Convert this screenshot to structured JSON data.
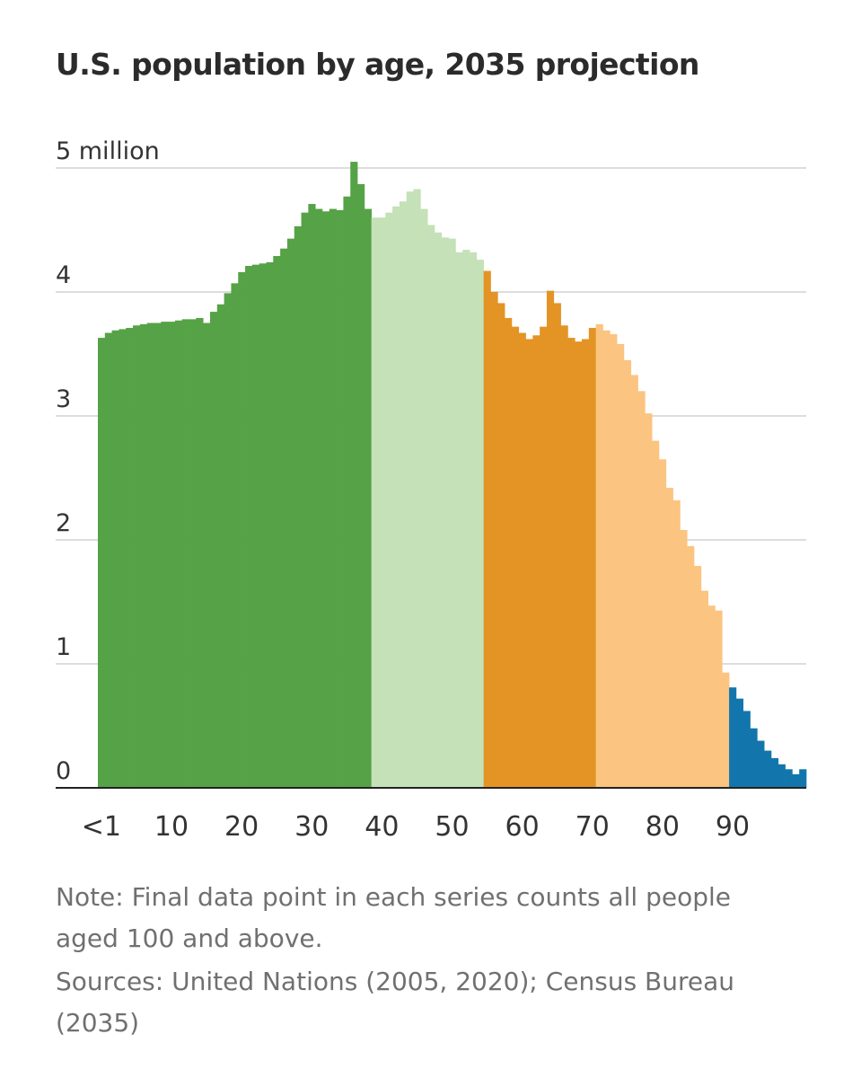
{
  "chart_data": {
    "type": "bar",
    "title": "U.S. population by age, 2035 projection",
    "y_unit_label": "million",
    "ylim": [
      0,
      5
    ],
    "y_ticks": [
      {
        "value": 0,
        "label": "0"
      },
      {
        "value": 1,
        "label": "1"
      },
      {
        "value": 2,
        "label": "2"
      },
      {
        "value": 3,
        "label": "3"
      },
      {
        "value": 4,
        "label": "4"
      },
      {
        "value": 5,
        "label": "5 million"
      }
    ],
    "x_ticks": [
      {
        "value": 0,
        "label": "<1"
      },
      {
        "value": 10,
        "label": "10"
      },
      {
        "value": 20,
        "label": "20"
      },
      {
        "value": 30,
        "label": "30"
      },
      {
        "value": 40,
        "label": "40"
      },
      {
        "value": 50,
        "label": "50"
      },
      {
        "value": 60,
        "label": "60"
      },
      {
        "value": 70,
        "label": "70"
      },
      {
        "value": 80,
        "label": "80"
      },
      {
        "value": 90,
        "label": "90"
      }
    ],
    "grid": true,
    "legend": "none",
    "x_start_age": 0,
    "groups": [
      {
        "from_age": 0,
        "to_age": 38,
        "color": "#56a247"
      },
      {
        "from_age": 39,
        "to_age": 54,
        "color": "#c5e1b7"
      },
      {
        "from_age": 55,
        "to_age": 70,
        "color": "#e39424"
      },
      {
        "from_age": 71,
        "to_age": 89,
        "color": "#fbc480"
      },
      {
        "from_age": 90,
        "to_age": 100,
        "color": "#1276ad"
      }
    ],
    "values": [
      3.63,
      3.67,
      3.69,
      3.7,
      3.71,
      3.73,
      3.74,
      3.75,
      3.75,
      3.76,
      3.76,
      3.77,
      3.78,
      3.78,
      3.79,
      3.75,
      3.84,
      3.9,
      3.99,
      4.07,
      4.16,
      4.21,
      4.22,
      4.23,
      4.24,
      4.29,
      4.35,
      4.43,
      4.53,
      4.64,
      4.71,
      4.67,
      4.65,
      4.67,
      4.66,
      4.77,
      5.05,
      4.87,
      4.67,
      4.6,
      4.6,
      4.64,
      4.69,
      4.73,
      4.81,
      4.83,
      4.67,
      4.54,
      4.48,
      4.44,
      4.43,
      4.32,
      4.34,
      4.32,
      4.26,
      4.17,
      4.0,
      3.91,
      3.79,
      3.72,
      3.67,
      3.62,
      3.65,
      3.72,
      4.01,
      3.91,
      3.73,
      3.63,
      3.6,
      3.62,
      3.71,
      3.74,
      3.69,
      3.66,
      3.58,
      3.45,
      3.33,
      3.2,
      3.02,
      2.8,
      2.65,
      2.42,
      2.32,
      2.08,
      1.95,
      1.79,
      1.59,
      1.47,
      1.43,
      0.93,
      0.81,
      0.72,
      0.62,
      0.48,
      0.38,
      0.3,
      0.24,
      0.19,
      0.15,
      0.11,
      0.15
    ]
  },
  "footnotes": {
    "note": "Note: Final data point in each series counts all people aged 100 and above.",
    "sources": "Sources: United Nations (2005, 2020); Census Bureau (2035)"
  }
}
